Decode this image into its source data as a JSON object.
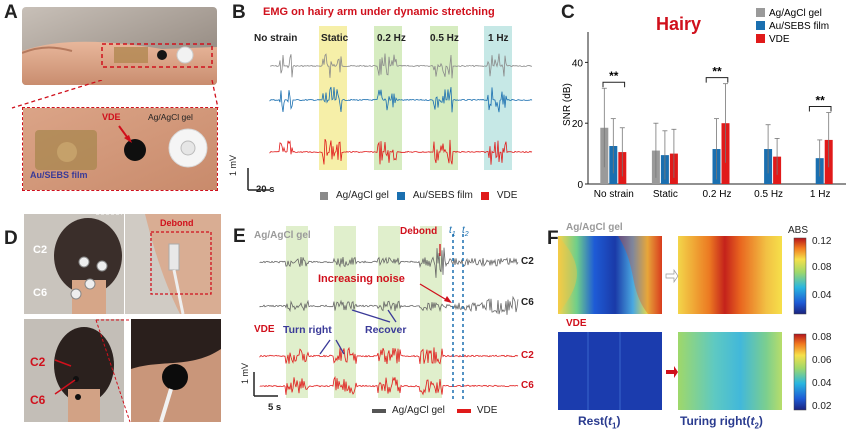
{
  "panels": {
    "A": {
      "label": "A",
      "callouts": {
        "vde": "VDE",
        "ag": "Ag/AgCl gel",
        "au": "Au/SEBS film"
      }
    },
    "B": {
      "label": "B",
      "title": "EMG on hairy arm under dynamic stretching",
      "conditions": [
        "No strain",
        "Static",
        "0.2 Hz",
        "0.5 Hz",
        "1 Hz"
      ],
      "scale_y": "1 mV",
      "scale_x": "20 s",
      "legend": [
        "Ag/AgCl gel",
        "Au/SEBS film",
        "VDE"
      ]
    },
    "C": {
      "label": "C",
      "title": "Hairy"
    },
    "D": {
      "label": "D",
      "top": {
        "c2": "C2",
        "c6": "C6",
        "debond": "Debond"
      },
      "bottom": {
        "c2": "C2",
        "c6": "C6"
      }
    },
    "E": {
      "label": "E",
      "group_ag": "Ag/AgCl gel",
      "debond": "Debond",
      "t1": "t",
      "t1_sub": "1",
      "t2": "t",
      "t2_sub": "2",
      "increasing_noise": "Increasing noise",
      "group_vde": "VDE",
      "turn_right": "Turn right",
      "recover": "Recover",
      "channels": [
        "C2",
        "C6",
        "C2",
        "C6"
      ],
      "scale_y": "1 mV",
      "scale_x": "5 s",
      "legend": [
        "Ag/AgCl gel",
        "VDE"
      ]
    },
    "F": {
      "label": "F",
      "group_ag": "Ag/AgCl gel",
      "group_vde": "VDE",
      "colorbar_title": "ABS",
      "cb_top_ticks": [
        "0.12",
        "0.08",
        "0.04"
      ],
      "cb_bottom_ticks": [
        "0.08",
        "0.06",
        "0.04",
        "0.02"
      ],
      "rest_label": "Rest(",
      "rest_t": "t",
      "rest_sub": "1",
      "turn_label": "Turing right(",
      "turn_t": "t",
      "turn_sub": "2",
      "close_paren": ")"
    }
  },
  "colors": {
    "ag": "#8a8a8a",
    "au": "#1a6fb0",
    "vde": "#e01a1a",
    "red_text": "#d0101c",
    "blue_text": "#2a3b8f"
  },
  "chart_data": {
    "type": "bar",
    "title": "Hairy",
    "categories": [
      "No strain",
      "Static",
      "0.2 Hz",
      "0.5 Hz",
      "1 Hz"
    ],
    "ylabel": "SNR (dB)",
    "ylim": [
      0,
      50
    ],
    "yticks": [
      "0",
      "20",
      "40"
    ],
    "grid": false,
    "legend_position": "top-right",
    "series": [
      {
        "name": "Ag/AgCl gel",
        "color": "#9a9a9a",
        "values": [
          18.5,
          11.0,
          null,
          null,
          null
        ],
        "errors": [
          13,
          9,
          null,
          null,
          null
        ]
      },
      {
        "name": "Au/SEBS film",
        "color": "#1a6fb0",
        "values": [
          12.5,
          9.5,
          11.5,
          11.5,
          8.5
        ],
        "errors": [
          9,
          8,
          10,
          8,
          6
        ]
      },
      {
        "name": "VDE",
        "color": "#e01a1a",
        "values": [
          10.5,
          10.0,
          20.0,
          9.0,
          14.5
        ],
        "errors": [
          8,
          8,
          13,
          6,
          9
        ]
      }
    ],
    "significance": [
      {
        "category": "No strain",
        "label": "**"
      },
      {
        "category": "0.2 Hz",
        "label": "**"
      },
      {
        "category": "1 Hz",
        "label": "**"
      }
    ]
  }
}
